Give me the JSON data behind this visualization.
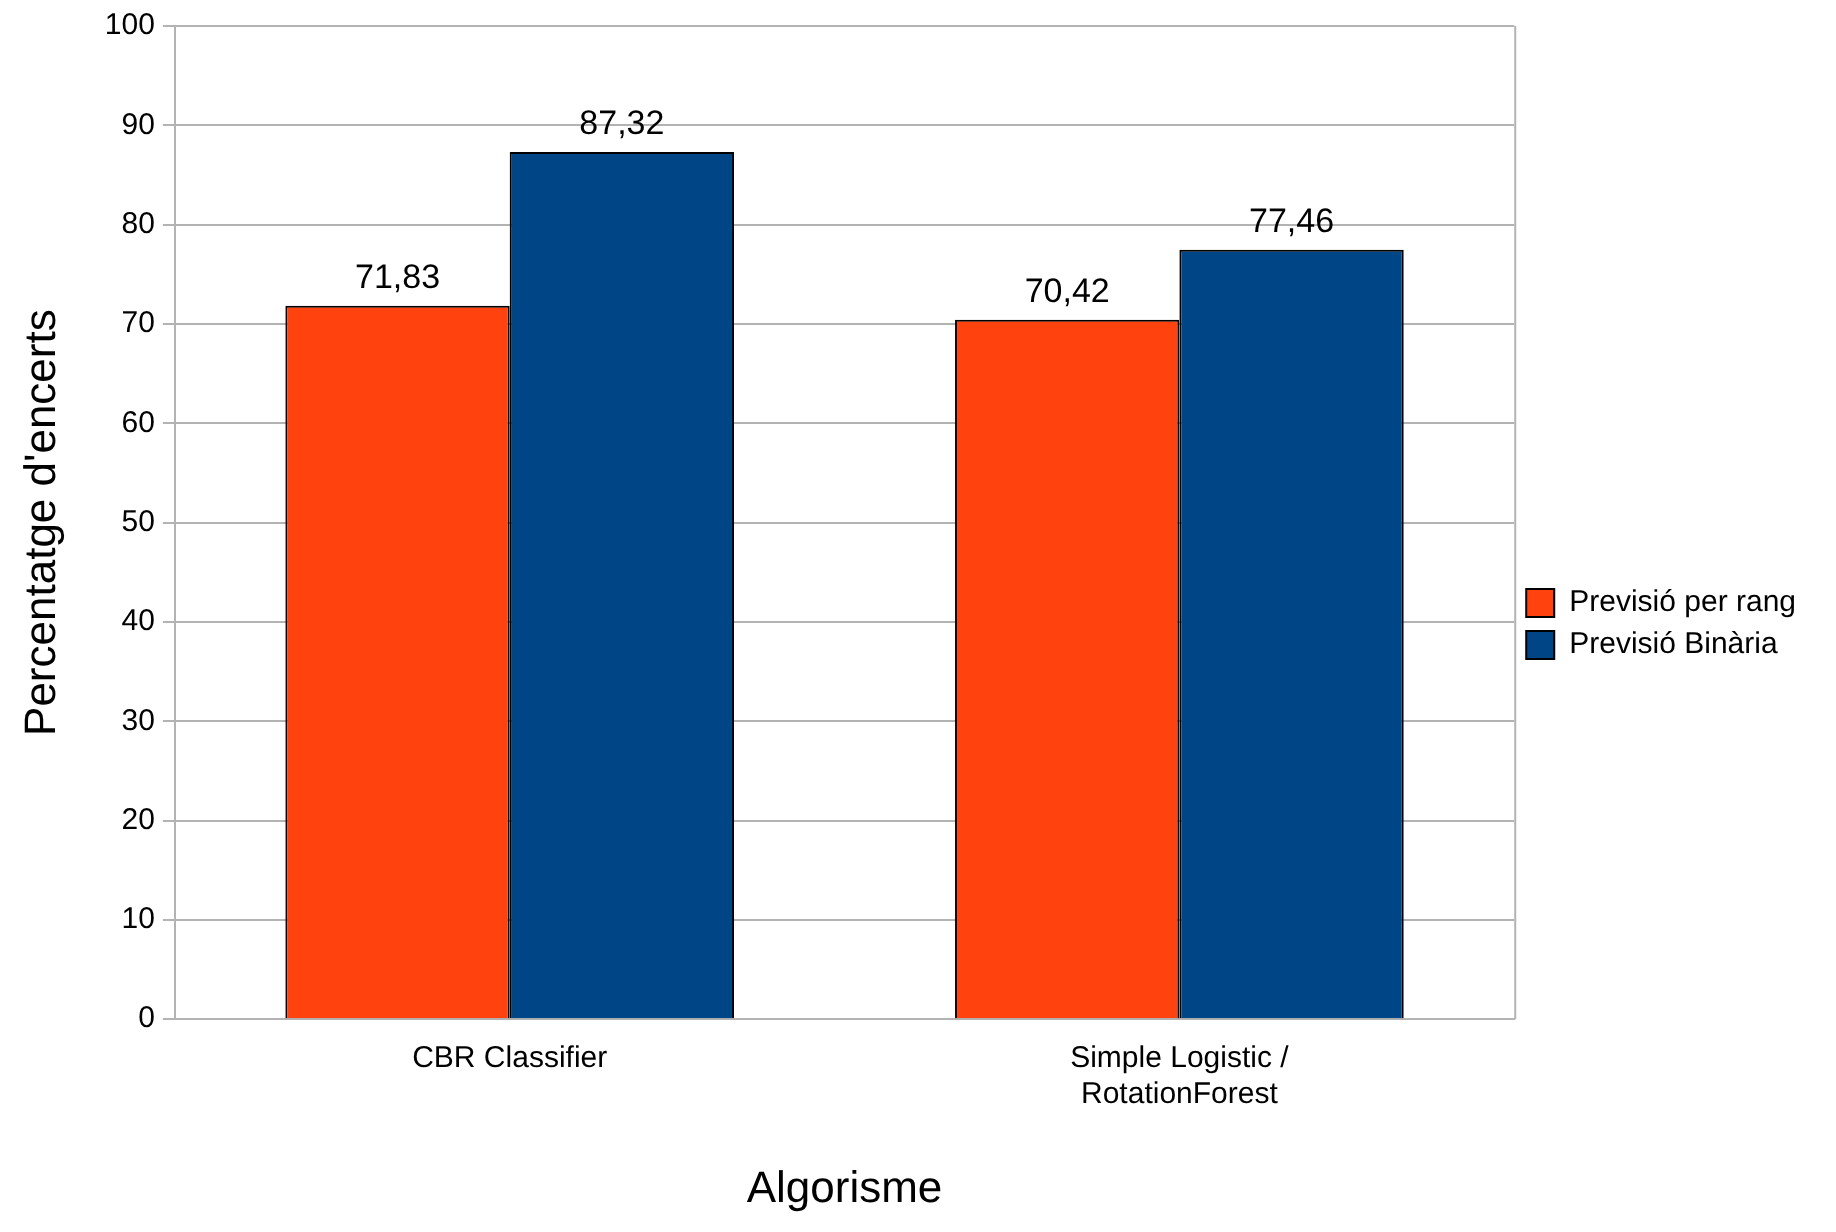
{
  "chart_data": {
    "type": "bar",
    "xlabel": "Algorisme",
    "ylabel": "Percentatge d'encerts",
    "categories": [
      "CBR Classifier",
      "Simple Logistic / RotationForest"
    ],
    "series": [
      {
        "name": "Previsió per rang",
        "color": "#ff420e",
        "values": [
          71.83,
          70.42
        ],
        "value_labels": [
          "71,83",
          "70,42"
        ]
      },
      {
        "name": "Previsió Binària",
        "color": "#004586",
        "values": [
          87.32,
          77.46
        ],
        "value_labels": [
          "87,32",
          "77,46"
        ]
      }
    ],
    "ylim": [
      0,
      100
    ],
    "yticks": [
      0,
      10,
      20,
      30,
      40,
      50,
      60,
      70,
      80,
      90,
      100
    ],
    "grid": "y",
    "legend": "right"
  }
}
